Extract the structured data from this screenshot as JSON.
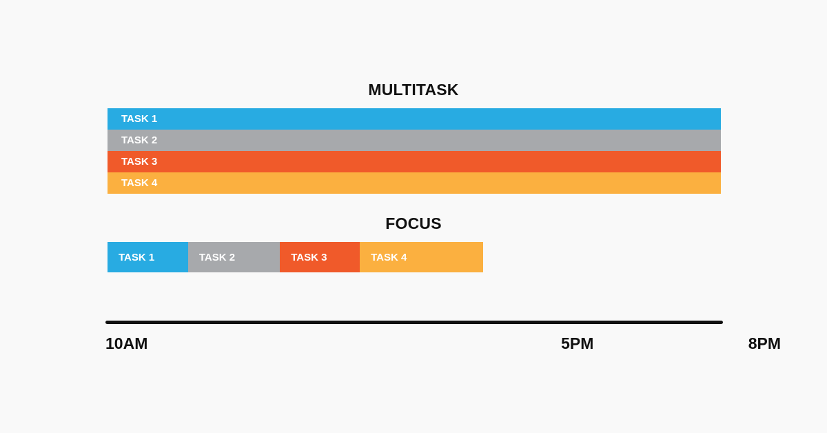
{
  "chart_data": [
    {
      "type": "bar",
      "title": "MULTITASK",
      "series": [
        {
          "name": "TASK 1",
          "start": "10AM",
          "end": "8PM",
          "color": "#28abe2"
        },
        {
          "name": "TASK 2",
          "start": "10AM",
          "end": "8PM",
          "color": "#a7a9ac"
        },
        {
          "name": "TASK 3",
          "start": "10AM",
          "end": "8PM",
          "color": "#f05a2a"
        },
        {
          "name": "TASK 4",
          "start": "10AM",
          "end": "8PM",
          "color": "#fbb040"
        }
      ]
    },
    {
      "type": "bar",
      "title": "FOCUS",
      "series": [
        {
          "name": "TASK 1",
          "start_hour": 10.0,
          "end_hour": 11.2,
          "color": "#28abe2"
        },
        {
          "name": "TASK 2",
          "start_hour": 11.2,
          "end_hour": 12.57,
          "color": "#a7a9ac"
        },
        {
          "name": "TASK 3",
          "start_hour": 12.57,
          "end_hour": 13.76,
          "color": "#f05a2a"
        },
        {
          "name": "TASK 4",
          "start_hour": 13.76,
          "end_hour": 15.6,
          "color": "#fbb040"
        }
      ]
    }
  ],
  "axis": {
    "ticks": [
      {
        "label": "10AM",
        "hour": 10
      },
      {
        "label": "5PM",
        "hour": 17
      },
      {
        "label": "8PM",
        "hour": 20
      }
    ]
  }
}
